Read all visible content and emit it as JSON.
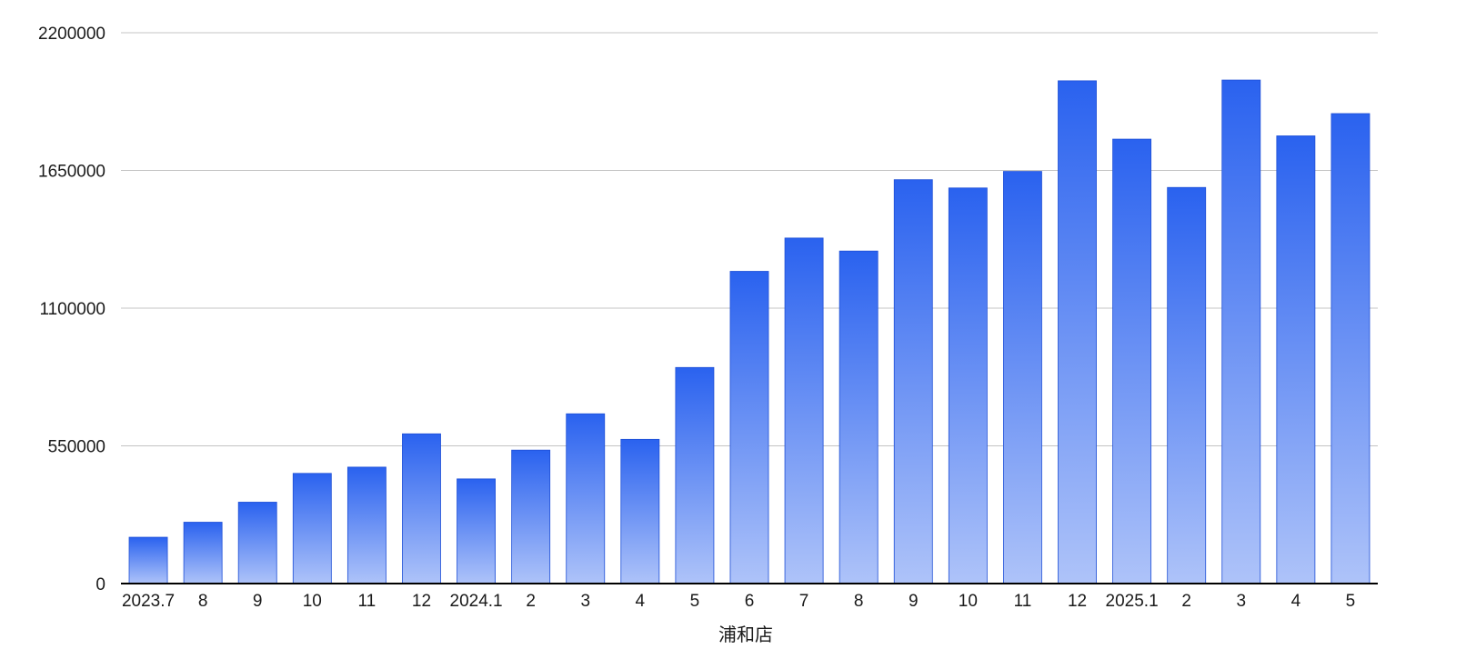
{
  "chart_data": {
    "type": "bar",
    "title": "",
    "xlabel": "浦和店",
    "ylabel": "",
    "ylim": [
      0,
      2200000
    ],
    "yticks": [
      "0",
      "550000",
      "1100000",
      "1650000",
      "2200000"
    ],
    "grid": true,
    "legend": "none",
    "categories": [
      "2023.7",
      "8",
      "9",
      "10",
      "11",
      "12",
      "2024.1",
      "2",
      "3",
      "4",
      "5",
      "6",
      "7",
      "8",
      "9",
      "10",
      "11",
      "12",
      "2025.1",
      "2",
      "3",
      "4",
      "5"
    ],
    "values": [
      185000,
      245000,
      325000,
      440000,
      465000,
      598000,
      418000,
      533000,
      678000,
      576000,
      863000,
      1247000,
      1380000,
      1328000,
      1613000,
      1580000,
      1646000,
      2008000,
      1775000,
      1582000,
      2011000,
      1788000,
      1877000
    ],
    "colors": {
      "bar_top": "#2a62ef",
      "bar_bottom": "#aec3f9",
      "grid": "#c4c4c4",
      "axis": "#000000"
    }
  }
}
